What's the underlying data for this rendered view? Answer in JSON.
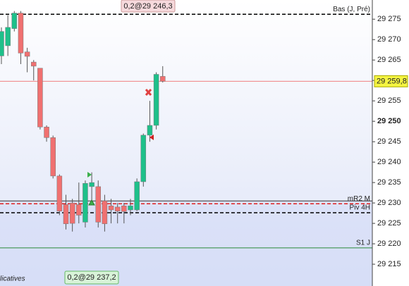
{
  "chart_data": {
    "type": "candlestick",
    "ylim": [
      29210.7,
      29279.7
    ],
    "yticks": [
      {
        "value": 29215,
        "label": "29 215"
      },
      {
        "value": 29220,
        "label": "29 220"
      },
      {
        "value": 29225,
        "label": "29 225"
      },
      {
        "value": 29230,
        "label": "29 230"
      },
      {
        "value": 29235,
        "label": "29 235"
      },
      {
        "value": 29240,
        "label": "29 240"
      },
      {
        "value": 29245,
        "label": "29 245"
      },
      {
        "value": 29250,
        "label": "29 250",
        "bold": true
      },
      {
        "value": 29255,
        "label": "29 255"
      },
      {
        "value": 29260,
        "label": "29 260"
      },
      {
        "value": 29265,
        "label": "29 265"
      },
      {
        "value": 29270,
        "label": "29 270"
      },
      {
        "value": 29275,
        "label": "29 275"
      }
    ],
    "up_color": "#1ec08a",
    "down_color": "#f07070",
    "open": [
      29266,
      29268.5,
      29272.7,
      29276.5,
      29267,
      29264.5,
      29263,
      29248.6,
      29246,
      29236.6,
      29229.6,
      29230,
      29229.6,
      29225.3,
      29234,
      29234,
      29230.5,
      29229.3,
      29229,
      29229.3,
      29228.3,
      29228.3,
      29235.2,
      29246.6,
      29249,
      29261
    ],
    "high": [
      29273,
      29276,
      29277,
      29277,
      29268,
      29265,
      29263,
      29249,
      29246.5,
      29237,
      29232,
      29231,
      29235,
      29235.5,
      29237.5,
      29235.5,
      29232,
      29231,
      29230,
      29230,
      29231,
      29236,
      29247,
      29255,
      29262,
      29263.5
    ],
    "low": [
      29264,
      29266,
      29272,
      29264,
      29262,
      29260,
      29248,
      29245,
      29236,
      29227,
      29223.5,
      29223,
      29225,
      29224,
      29230,
      29224,
      29223,
      29225,
      29225,
      29225,
      29227,
      29228,
      29234,
      29245,
      29248,
      29259.5
    ],
    "close": [
      29272,
      29273,
      29276.5,
      29266.7,
      29265.9,
      29263.5,
      29248.6,
      29246,
      29236.6,
      29228,
      29224.9,
      29225,
      29227,
      29234.8,
      29235,
      29225.3,
      29224.9,
      29228.3,
      29228,
      29227.9,
      29229.3,
      29235.2,
      29246.6,
      29249,
      29261.5,
      29259.8
    ],
    "levels": [
      {
        "name": "Bas (J, Pré)",
        "value": 29276.2,
        "color": "#000000",
        "dash": true
      },
      {
        "value": 29230.5,
        "color": "#333333",
        "dash": false
      },
      {
        "name": "mR2 M",
        "value": 29229.8,
        "color": "#e02020",
        "dash": true
      },
      {
        "name": "Piv 4H",
        "value": 29227.6,
        "color": "#000000",
        "dash": true
      },
      {
        "name": "S1 J",
        "value": 29219.0,
        "color": "#2a8a3a",
        "dash": false
      }
    ],
    "last_price": {
      "value": 29259.8,
      "label": "29 259,8",
      "color": "#f08080"
    },
    "order_top": "0,2@29 246,3",
    "order_bottom": "0,2@29 237,2",
    "footer": "licatives"
  }
}
